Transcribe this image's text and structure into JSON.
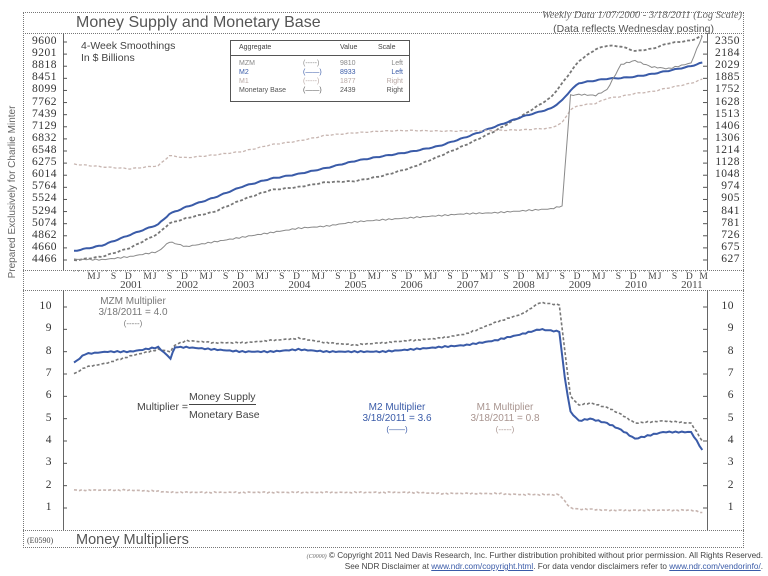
{
  "side_label": "Prepared Exclusively for Charlie Minter",
  "top_panel": {
    "title": "Money Supply and Monetary Base",
    "subtitle_line1": "Weekly Data 1/07/2000 - 3/18/2011 (Log Scale)",
    "subtitle_line2": "(Data reflects Wednesday posting)",
    "note_line1": "4-Week Smoothings",
    "note_line2": "In $ Billions",
    "legend": {
      "headers": {
        "aggregate": "Aggregate",
        "value": "Value",
        "scale": "Scale"
      },
      "rows": [
        {
          "name": "MZM",
          "style": "(-----)",
          "value": "9810",
          "scale": "Left",
          "color": "#888888"
        },
        {
          "name": "M2",
          "style": "(——)",
          "value": "8933",
          "scale": "Left",
          "color": "#3a5ba8"
        },
        {
          "name": "M1",
          "style": "(-----)",
          "value": "1877",
          "scale": "Right",
          "color": "#b8a8a4"
        },
        {
          "name": "Monetary Base",
          "style": "(——)",
          "value": "2439",
          "scale": "Right",
          "color": "#555555"
        }
      ]
    }
  },
  "bottom_panel": {
    "title": "Money Multipliers",
    "code": "(E0590)",
    "formula_prefix": "Multiplier =",
    "formula_numerator": "Money Supply",
    "formula_denominator": "Monetary Base",
    "annotations": [
      {
        "name": "MZM Multiplier",
        "date_value": "3/18/2011 = 4.0",
        "style": "(-----)",
        "color": "#777777"
      },
      {
        "name": "M2 Multiplier",
        "date_value": "3/18/2011 = 3.6",
        "style": "(——)",
        "color": "#3a5ba8"
      },
      {
        "name": "M1 Multiplier",
        "date_value": "3/18/2011 = 0.8",
        "style": "(-----)",
        "color": "#a8948f"
      }
    ]
  },
  "x_axis": {
    "month_labels": [
      "M",
      "J",
      "S",
      "D"
    ],
    "years": [
      "2001",
      "2002",
      "2003",
      "2004",
      "2005",
      "2006",
      "2007",
      "2008",
      "2009",
      "2010",
      "2011"
    ],
    "final_month": "M"
  },
  "footer": {
    "code": "(C0000)",
    "line1": "© Copyright 2011 Ned Davis Research, Inc.  Further distribution prohibited without prior permission.  All Rights Reserved.",
    "line2_prefix": "See NDR Disclaimer at ",
    "link1": "www.ndr.com/copyright.html",
    "line2_mid": ". For data vendor disclaimers refer to ",
    "link2": "www.ndr.com/vendorinfo/",
    "line2_suffix": "."
  },
  "chart_data": [
    {
      "type": "line",
      "title": "Money Supply and Monetary Base",
      "subtitle": "Weekly Data 1/07/2000 - 3/18/2011 (Log Scale)",
      "xlabel": "",
      "ylabel_left": "$ Billions (MZM, M2)",
      "ylabel_right": "$ Billions (M1, Monetary Base)",
      "y_scale": "log",
      "left_ticks": [
        9600,
        9201,
        8818,
        8451,
        8099,
        7762,
        7439,
        7129,
        6832,
        6548,
        6275,
        6014,
        5764,
        5524,
        5294,
        5074,
        4862,
        4660,
        4466
      ],
      "right_ticks": [
        2350,
        2184,
        2029,
        1885,
        1752,
        1628,
        1513,
        1406,
        1306,
        1214,
        1128,
        1048,
        974,
        905,
        841,
        781,
        726,
        675,
        627
      ],
      "x": [
        2000.0,
        2000.5,
        2001.0,
        2001.5,
        2001.7,
        2002.0,
        2002.5,
        2003.0,
        2003.5,
        2004.0,
        2004.5,
        2005.0,
        2005.5,
        2006.0,
        2006.5,
        2007.0,
        2007.5,
        2008.0,
        2008.5,
        2008.7,
        2008.85,
        2009.0,
        2009.3,
        2009.5,
        2009.75,
        2010.0,
        2010.3,
        2010.6,
        2011.0,
        2011.2
      ],
      "series": [
        {
          "name": "MZM",
          "axis": "left",
          "style": "dashed",
          "values": [
            4460,
            4520,
            4660,
            4900,
            5080,
            5170,
            5290,
            5520,
            5710,
            5770,
            5870,
            5890,
            6000,
            6170,
            6420,
            6700,
            7020,
            7420,
            7900,
            8300,
            8640,
            8980,
            9360,
            9480,
            9450,
            9300,
            9370,
            9560,
            9650,
            9810
          ]
        },
        {
          "name": "M2",
          "axis": "left",
          "style": "solid",
          "values": [
            4610,
            4700,
            4880,
            5060,
            5250,
            5380,
            5560,
            5780,
            5940,
            6040,
            6170,
            6320,
            6430,
            6530,
            6660,
            6880,
            7130,
            7390,
            7600,
            7820,
            8100,
            8310,
            8390,
            8440,
            8460,
            8500,
            8580,
            8680,
            8820,
            8933
          ]
        },
        {
          "name": "M1",
          "axis": "right",
          "style": "dashed",
          "values": [
            1121,
            1103,
            1090,
            1110,
            1180,
            1165,
            1185,
            1210,
            1260,
            1290,
            1335,
            1355,
            1370,
            1375,
            1370,
            1370,
            1375,
            1380,
            1395,
            1440,
            1560,
            1600,
            1620,
            1670,
            1690,
            1720,
            1740,
            1780,
            1830,
            1877
          ]
        },
        {
          "name": "Monetary Base",
          "axis": "right",
          "style": "solid",
          "values": [
            630,
            628,
            640,
            660,
            700,
            680,
            700,
            720,
            740,
            760,
            770,
            790,
            800,
            810,
            820,
            830,
            835,
            845,
            855,
            870,
            1700,
            1710,
            1700,
            1760,
            2050,
            2100,
            2020,
            2000,
            2070,
            2439
          ]
        }
      ]
    },
    {
      "type": "line",
      "title": "Money Multipliers",
      "xlabel": "",
      "ylabel": "Multiplier",
      "ylim": [
        1,
        10
      ],
      "y_ticks": [
        1,
        2,
        3,
        4,
        5,
        6,
        7,
        8,
        9,
        10
      ],
      "x": [
        2000.0,
        2000.2,
        2000.6,
        2001.0,
        2001.5,
        2001.72,
        2001.8,
        2002.0,
        2002.5,
        2003.0,
        2003.5,
        2004.0,
        2004.5,
        2005.0,
        2005.5,
        2006.0,
        2006.5,
        2007.0,
        2007.5,
        2008.0,
        2008.3,
        2008.65,
        2008.75,
        2008.85,
        2009.0,
        2009.2,
        2009.5,
        2009.75,
        2010.0,
        2010.5,
        2011.0,
        2011.2
      ],
      "series": [
        {
          "name": "MZM Multiplier",
          "style": "dashed",
          "values": [
            7.0,
            7.3,
            7.5,
            7.8,
            8.1,
            8.0,
            8.3,
            8.5,
            8.4,
            8.4,
            8.5,
            8.6,
            8.4,
            8.3,
            8.4,
            8.5,
            8.6,
            8.8,
            9.3,
            9.7,
            10.2,
            10.1,
            8.0,
            6.0,
            5.6,
            5.7,
            5.5,
            5.2,
            4.8,
            4.9,
            4.8,
            4.0
          ]
        },
        {
          "name": "M2 Multiplier",
          "style": "solid",
          "values": [
            7.5,
            7.9,
            8.0,
            8.0,
            8.2,
            7.7,
            8.2,
            8.2,
            8.1,
            8.0,
            8.0,
            8.1,
            8.0,
            8.0,
            8.0,
            8.1,
            8.2,
            8.3,
            8.5,
            8.8,
            9.0,
            8.9,
            6.8,
            5.3,
            4.9,
            5.0,
            4.8,
            4.5,
            4.1,
            4.4,
            4.4,
            3.6
          ]
        },
        {
          "name": "M1 Multiplier",
          "style": "dashed",
          "values": [
            1.8,
            1.8,
            1.8,
            1.8,
            1.75,
            1.7,
            1.7,
            1.7,
            1.7,
            1.7,
            1.7,
            1.7,
            1.7,
            1.7,
            1.7,
            1.7,
            1.65,
            1.65,
            1.65,
            1.6,
            1.6,
            1.6,
            1.3,
            1.0,
            0.95,
            0.95,
            0.9,
            0.9,
            0.9,
            0.9,
            0.9,
            0.8
          ]
        }
      ]
    }
  ]
}
